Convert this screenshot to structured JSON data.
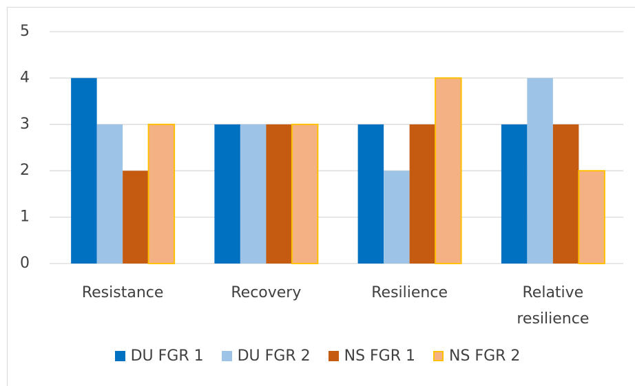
{
  "chart_data": {
    "type": "bar",
    "categories": [
      "Resistance",
      "Recovery",
      "Resilience",
      "Relative resilience"
    ],
    "series": [
      {
        "name": "DU FGR 1",
        "color": "#0070c0",
        "values": [
          4,
          3,
          3,
          3
        ]
      },
      {
        "name": "DU FGR 2",
        "color": "#9dc3e6",
        "values": [
          3,
          3,
          2,
          4
        ]
      },
      {
        "name": "NS FGR 1",
        "color": "#c55a11",
        "values": [
          2,
          3,
          3,
          3
        ]
      },
      {
        "name": "NS FGR 2",
        "color": "#f4b183",
        "edgecolor": "#ffc000",
        "values": [
          3,
          3,
          4,
          2
        ]
      }
    ],
    "ylim": [
      0,
      5
    ],
    "yticks": [
      0,
      1,
      2,
      3,
      4,
      5
    ],
    "grid": true,
    "legend": "bottom"
  }
}
